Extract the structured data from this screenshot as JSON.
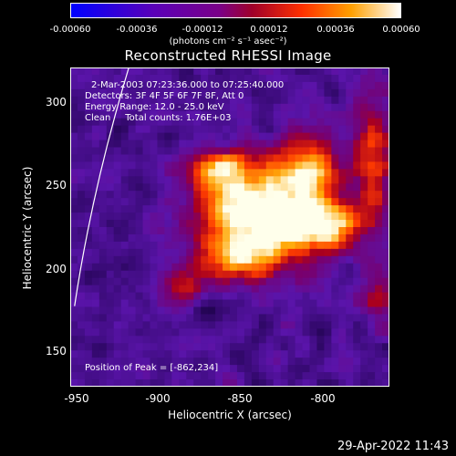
{
  "chart_data": {
    "type": "heatmap",
    "title": "Reconstructed RHESSI Image",
    "xlabel": "Heliocentric X (arcsec)",
    "ylabel": "Heliocentric Y (arcsec)",
    "xlim": [
      -955,
      -808
    ],
    "ylim": [
      128,
      326
    ],
    "xticks": [
      "-950",
      "-900",
      "-850",
      "-800"
    ],
    "yticks": [
      "150",
      "200",
      "250",
      "300"
    ],
    "colorbar": {
      "ticks": [
        "-0.00060",
        "-0.00036",
        "-0.00012",
        "0.00012",
        "0.00036",
        "0.00060"
      ],
      "units": "(photons cm⁻² s⁻¹ asec⁻²)",
      "range": [
        -0.0006,
        0.0006
      ]
    },
    "annotations": {
      "time_range": "2-Mar-2003 07:23:36.000 to 07:25:40.000",
      "detectors": "Detectors: 3F 4F 5F 6F 7F 8F, Att 0",
      "energy": "Energy Range: 12.0 - 25.0 keV",
      "clean": "Clean     Total counts: 1.76E+03",
      "peak": "Position of Peak = [-862,234]"
    },
    "peak": {
      "x": -862,
      "y": 234
    },
    "limb_visible": true
  },
  "timestamp": "29-Apr-2022 11:43"
}
